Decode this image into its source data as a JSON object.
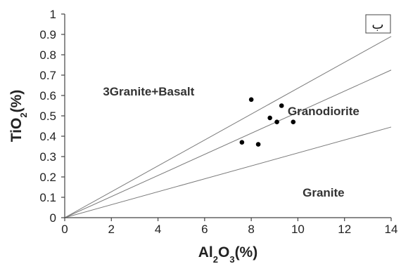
{
  "chart_data": {
    "type": "scatter",
    "title": "",
    "xlabel_base": "Al",
    "xlabel_sub1": "2",
    "xlabel_mid": "O",
    "xlabel_sub2": "3",
    "xlabel_tail": "(%)",
    "ylabel_base": "TiO",
    "ylabel_sub": "2",
    "ylabel_tail": "(%)",
    "xlim": [
      0,
      14
    ],
    "ylim": [
      0,
      1
    ],
    "x_ticks": [
      "0",
      "2",
      "4",
      "6",
      "8",
      "10",
      "12",
      "14"
    ],
    "y_ticks": [
      "0",
      "0.1",
      "0.2",
      "0.3",
      "0.4",
      "0.5",
      "0.6",
      "0.7",
      "0.8",
      "0.9",
      "1"
    ],
    "grid": false,
    "boundary_lines": [
      {
        "x": [
          0,
          14
        ],
        "y": [
          0,
          0.89
        ]
      },
      {
        "x": [
          0,
          14
        ],
        "y": [
          0,
          0.725
        ]
      },
      {
        "x": [
          0,
          14
        ],
        "y": [
          0,
          0.445
        ]
      }
    ],
    "regions": [
      {
        "label": "3Granite+Basalt",
        "x": 3.6,
        "y": 0.62
      },
      {
        "label": "Granodiorite",
        "x": 11.1,
        "y": 0.525
      },
      {
        "label": "Granite",
        "x": 11.1,
        "y": 0.125
      }
    ],
    "points": [
      {
        "x": 7.6,
        "y": 0.37
      },
      {
        "x": 8.0,
        "y": 0.58
      },
      {
        "x": 8.3,
        "y": 0.36
      },
      {
        "x": 8.8,
        "y": 0.49
      },
      {
        "x": 9.1,
        "y": 0.47
      },
      {
        "x": 9.3,
        "y": 0.55
      },
      {
        "x": 9.8,
        "y": 0.47
      }
    ],
    "corner_label": "ب"
  }
}
